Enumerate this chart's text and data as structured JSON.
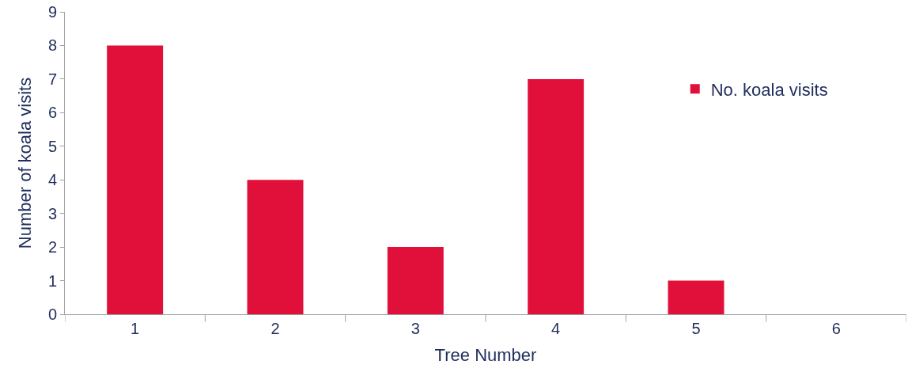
{
  "chart_data": {
    "type": "bar",
    "xlabel": "Tree Number",
    "ylabel": "Number of koala visits",
    "categories": [
      "1",
      "2",
      "3",
      "4",
      "5",
      "6"
    ],
    "series": [
      {
        "name": "No. koala visits",
        "color": "#e0103a",
        "values": [
          8,
          4,
          2,
          7,
          1,
          0
        ]
      }
    ],
    "ylim": [
      0,
      9
    ],
    "yticks": [
      0,
      1,
      2,
      3,
      4,
      5,
      6,
      7,
      8,
      9
    ],
    "legend": "top right"
  }
}
